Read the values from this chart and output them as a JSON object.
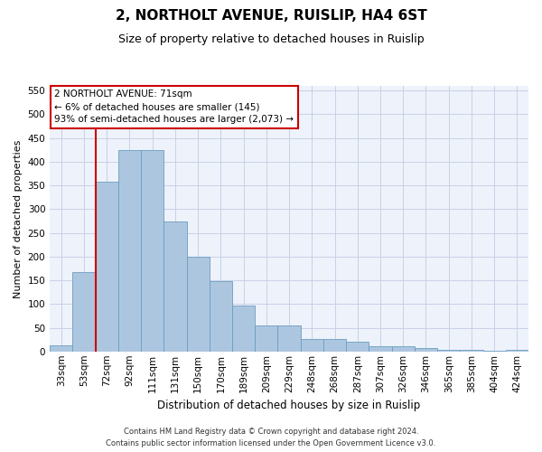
{
  "title": "2, NORTHOLT AVENUE, RUISLIP, HA4 6ST",
  "subtitle": "Size of property relative to detached houses in Ruislip",
  "xlabel": "Distribution of detached houses by size in Ruislip",
  "ylabel": "Number of detached properties",
  "categories": [
    "33sqm",
    "53sqm",
    "72sqm",
    "92sqm",
    "111sqm",
    "131sqm",
    "150sqm",
    "170sqm",
    "189sqm",
    "209sqm",
    "229sqm",
    "248sqm",
    "268sqm",
    "287sqm",
    "307sqm",
    "326sqm",
    "346sqm",
    "365sqm",
    "385sqm",
    "404sqm",
    "424sqm"
  ],
  "bar_heights": [
    12,
    168,
    357,
    425,
    425,
    275,
    200,
    148,
    96,
    55,
    55,
    27,
    27,
    20,
    11,
    11,
    7,
    4,
    4,
    2,
    4
  ],
  "bar_color": "#adc6e0",
  "bar_edge_color": "#6a9ec0",
  "annotation_text_line1": "2 NORTHOLT AVENUE: 71sqm",
  "annotation_text_line2": "← 6% of detached houses are smaller (145)",
  "annotation_text_line3": "93% of semi-detached houses are larger (2,073) →",
  "annotation_box_color": "#ffffff",
  "annotation_box_edge_color": "#cc0000",
  "red_line_color": "#cc0000",
  "ylim": [
    0,
    560
  ],
  "yticks": [
    0,
    50,
    100,
    150,
    200,
    250,
    300,
    350,
    400,
    450,
    500,
    550
  ],
  "footer_line1": "Contains HM Land Registry data © Crown copyright and database right 2024.",
  "footer_line2": "Contains public sector information licensed under the Open Government Licence v3.0.",
  "bg_color": "#eef2fa",
  "grid_color": "#c8d0e8",
  "title_fontsize": 11,
  "subtitle_fontsize": 9,
  "xlabel_fontsize": 8.5,
  "ylabel_fontsize": 8,
  "tick_fontsize": 7.5,
  "annotation_fontsize": 7.5,
  "footer_fontsize": 6
}
